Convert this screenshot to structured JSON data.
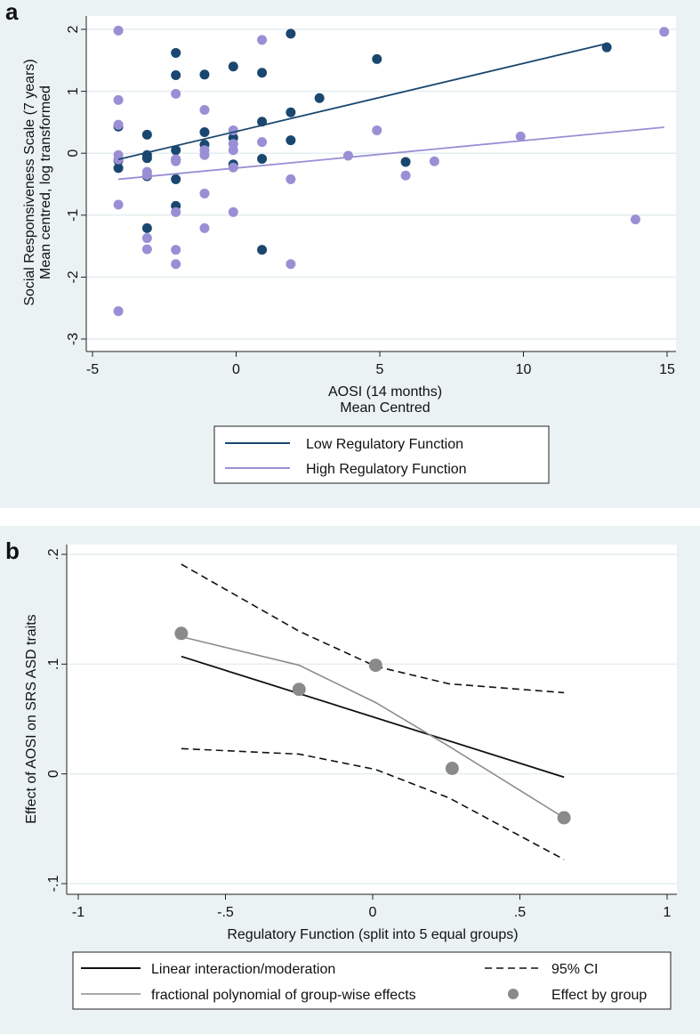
{
  "chart_data": [
    {
      "panel_label": "a",
      "type": "scatter",
      "xlabel": [
        "AOSI (14 months)",
        "Mean Centred"
      ],
      "ylabel": [
        "Social Responsiveness Scale (7 years)",
        "Mean centred, log transformed"
      ],
      "xlim": [
        -5.2,
        15.3
      ],
      "ylim": [
        -3.2,
        2.2
      ],
      "xticks": [
        "-5",
        "0",
        "5",
        "10",
        "15"
      ],
      "xtick_values": [
        -5,
        0,
        5,
        10,
        15
      ],
      "yticks": [
        "2",
        "1",
        "0",
        "-1",
        "-2",
        "-3"
      ],
      "ytick_values": [
        2,
        1,
        0,
        -1,
        -2,
        -3
      ],
      "grid": true,
      "legend_position": "bottom",
      "series": [
        {
          "name": "Low Regulatory Function",
          "color": "#1a476f",
          "points": [
            [
              -4.1,
              0.43
            ],
            [
              -4.1,
              -0.12
            ],
            [
              -4.1,
              -0.24
            ],
            [
              -3.1,
              0.3
            ],
            [
              -3.1,
              -0.03
            ],
            [
              -3.1,
              -0.08
            ],
            [
              -3.1,
              -0.37
            ],
            [
              -3.1,
              -1.21
            ],
            [
              -2.1,
              1.62
            ],
            [
              -2.1,
              1.26
            ],
            [
              -2.1,
              0.05
            ],
            [
              -2.1,
              -0.1
            ],
            [
              -2.1,
              -0.42
            ],
            [
              -2.1,
              -0.85
            ],
            [
              -1.1,
              1.27
            ],
            [
              -1.1,
              0.34
            ],
            [
              -1.1,
              0.14
            ],
            [
              -0.1,
              1.4
            ],
            [
              -0.1,
              0.25
            ],
            [
              -0.1,
              -0.18
            ],
            [
              0.9,
              1.3
            ],
            [
              0.9,
              0.51
            ],
            [
              0.9,
              -0.09
            ],
            [
              0.9,
              -1.56
            ],
            [
              1.9,
              1.93
            ],
            [
              1.9,
              0.66
            ],
            [
              1.9,
              0.21
            ],
            [
              2.9,
              0.89
            ],
            [
              4.9,
              1.52
            ],
            [
              5.9,
              -0.14
            ],
            [
              12.9,
              1.71
            ]
          ],
          "fit_line": [
            [
              -4.1,
              -0.1
            ],
            [
              12.9,
              1.77
            ]
          ]
        },
        {
          "name": "High Regulatory Function",
          "color": "#9a8fd5",
          "points": [
            [
              -4.1,
              1.98
            ],
            [
              -4.1,
              0.86
            ],
            [
              -4.1,
              0.46
            ],
            [
              -4.1,
              -0.03
            ],
            [
              -4.1,
              -0.1
            ],
            [
              -4.1,
              -0.83
            ],
            [
              -4.1,
              -2.55
            ],
            [
              -3.1,
              -0.3
            ],
            [
              -3.1,
              -0.35
            ],
            [
              -3.1,
              -1.37
            ],
            [
              -3.1,
              -1.55
            ],
            [
              -2.1,
              0.96
            ],
            [
              -2.1,
              -0.1
            ],
            [
              -2.1,
              -0.13
            ],
            [
              -2.1,
              -0.95
            ],
            [
              -2.1,
              -1.56
            ],
            [
              -2.1,
              -1.79
            ],
            [
              -1.1,
              0.7
            ],
            [
              -1.1,
              0.05
            ],
            [
              -1.1,
              -0.03
            ],
            [
              -1.1,
              -0.65
            ],
            [
              -1.1,
              -1.21
            ],
            [
              -0.1,
              0.37
            ],
            [
              -0.1,
              0.15
            ],
            [
              -0.1,
              0.05
            ],
            [
              -0.1,
              -0.23
            ],
            [
              -0.1,
              -0.95
            ],
            [
              0.9,
              1.83
            ],
            [
              0.9,
              0.18
            ],
            [
              1.9,
              -0.42
            ],
            [
              1.9,
              -1.79
            ],
            [
              3.9,
              -0.04
            ],
            [
              4.9,
              0.37
            ],
            [
              5.9,
              -0.36
            ],
            [
              6.9,
              -0.13
            ],
            [
              9.9,
              0.27
            ],
            [
              13.9,
              -1.07
            ],
            [
              14.9,
              1.96
            ]
          ],
          "fit_line": [
            [
              -4.1,
              -0.42
            ],
            [
              14.9,
              0.42
            ]
          ]
        }
      ]
    },
    {
      "panel_label": "b",
      "type": "line",
      "xlabel": "Regulatory Function (split into 5 equal groups)",
      "ylabel": "Effect of AOSI on SRS ASD traits",
      "xlim": [
        -1.08,
        1.03
      ],
      "ylim": [
        -0.11,
        0.205
      ],
      "xticks": [
        "-1",
        "-.5",
        "0",
        ".5",
        "1"
      ],
      "xtick_values": [
        -1,
        -0.5,
        0,
        0.5,
        1
      ],
      "yticks": [
        ".2",
        ".1",
        "0",
        "-.1"
      ],
      "ytick_values": [
        0.2,
        0.1,
        0,
        -0.1
      ],
      "grid": true,
      "legend_position": "bottom",
      "series": [
        {
          "name": "Linear interaction/moderation",
          "style": "solid",
          "color": "#111111",
          "x": [
            -0.65,
            0.65
          ],
          "y": [
            0.107,
            -0.003
          ]
        },
        {
          "name": "95% CI",
          "style": "dashed",
          "color": "#111111",
          "x": [
            -0.65,
            -0.25,
            0.01,
            0.26,
            0.65
          ],
          "y": [
            0.191,
            0.13,
            0.098,
            0.082,
            0.074
          ],
          "lower": [
            0.023,
            0.018,
            0.004,
            -0.022,
            -0.078
          ]
        },
        {
          "name": "fractional polynomial of group-wise effects",
          "style": "solid",
          "color": "#8c8c8c",
          "x": [
            -0.65,
            -0.25,
            0.01,
            0.26,
            0.65
          ],
          "y": [
            0.125,
            0.099,
            0.065,
            0.025,
            -0.04
          ]
        },
        {
          "name": "Effect by group",
          "style": "marker",
          "color": "#8a8a8a",
          "x": [
            -0.65,
            -0.25,
            0.01,
            0.27,
            0.65
          ],
          "y": [
            0.128,
            0.077,
            0.099,
            0.005,
            -0.04
          ]
        }
      ]
    }
  ]
}
